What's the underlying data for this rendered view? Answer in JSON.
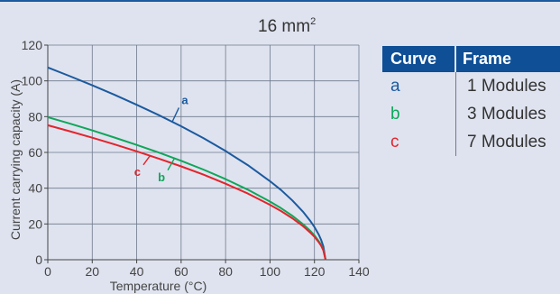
{
  "title": {
    "text": "16 mm",
    "sup": "2"
  },
  "chart_data": {
    "type": "line",
    "xlabel": "Temperature (°C)",
    "ylabel": "Current carrying capacity (A)",
    "xlim": [
      0,
      140
    ],
    "ylim": [
      0,
      120
    ],
    "x_ticks": [
      0,
      20,
      40,
      60,
      80,
      100,
      120,
      140
    ],
    "y_ticks": [
      0,
      20,
      40,
      60,
      80,
      100,
      120
    ],
    "grid": true,
    "series": [
      {
        "name": "a",
        "color": "#1b5a9f",
        "x": [
          0,
          10,
          20,
          30,
          40,
          50,
          60,
          70,
          80,
          90,
          100,
          105,
          110,
          115,
          118,
          120,
          122,
          123,
          124,
          125
        ],
        "y": [
          107.5,
          102.6,
          97.5,
          92.2,
          86.6,
          80.8,
          74.6,
          68.0,
          60.8,
          52.9,
          43.9,
          38.9,
          33.2,
          26.6,
          21.9,
          18.3,
          13.9,
          11.1,
          7.4,
          0
        ]
      },
      {
        "name": "b",
        "color": "#10a65a",
        "x": [
          0,
          10,
          20,
          30,
          40,
          50,
          60,
          70,
          80,
          90,
          100,
          105,
          110,
          115,
          118,
          120,
          122,
          123,
          124,
          125
        ],
        "y": [
          79.7,
          76.1,
          72.3,
          68.3,
          64.2,
          59.9,
          55.3,
          50.4,
          45.1,
          39.2,
          32.5,
          28.8,
          24.6,
          19.7,
          16.3,
          13.6,
          10.3,
          8.2,
          5.5,
          0
        ]
      },
      {
        "name": "c",
        "color": "#e3242b",
        "x": [
          0,
          10,
          20,
          30,
          40,
          50,
          60,
          70,
          80,
          90,
          100,
          105,
          110,
          115,
          118,
          120,
          122,
          123,
          124,
          125
        ],
        "y": [
          75.2,
          71.8,
          68.2,
          64.5,
          60.6,
          56.5,
          52.2,
          47.6,
          42.5,
          37.0,
          30.7,
          27.2,
          23.2,
          18.6,
          15.3,
          12.8,
          9.7,
          7.8,
          5.2,
          0
        ]
      }
    ],
    "annotations": [
      {
        "text": "a",
        "series": "a",
        "at_x": 56,
        "label_x": 59,
        "label_y": 87,
        "color": "#1b5a9f"
      },
      {
        "text": "b",
        "series": "b",
        "at_x": 57,
        "label_x": 54,
        "label_y": 45,
        "color": "#10a65a"
      },
      {
        "text": "c",
        "series": "c",
        "at_x": 46,
        "label_x": 43,
        "label_y": 48,
        "color": "#e3242b"
      }
    ]
  },
  "legend": {
    "headers": [
      "Curve",
      "Frame"
    ],
    "rows": [
      {
        "curve": "a",
        "frame": "1 Modules",
        "color": "#1b5a9f"
      },
      {
        "curve": "b",
        "frame": "3 Modules",
        "color": "#10a65a"
      },
      {
        "curve": "c",
        "frame": "7 Modules",
        "color": "#e3242b"
      }
    ]
  }
}
